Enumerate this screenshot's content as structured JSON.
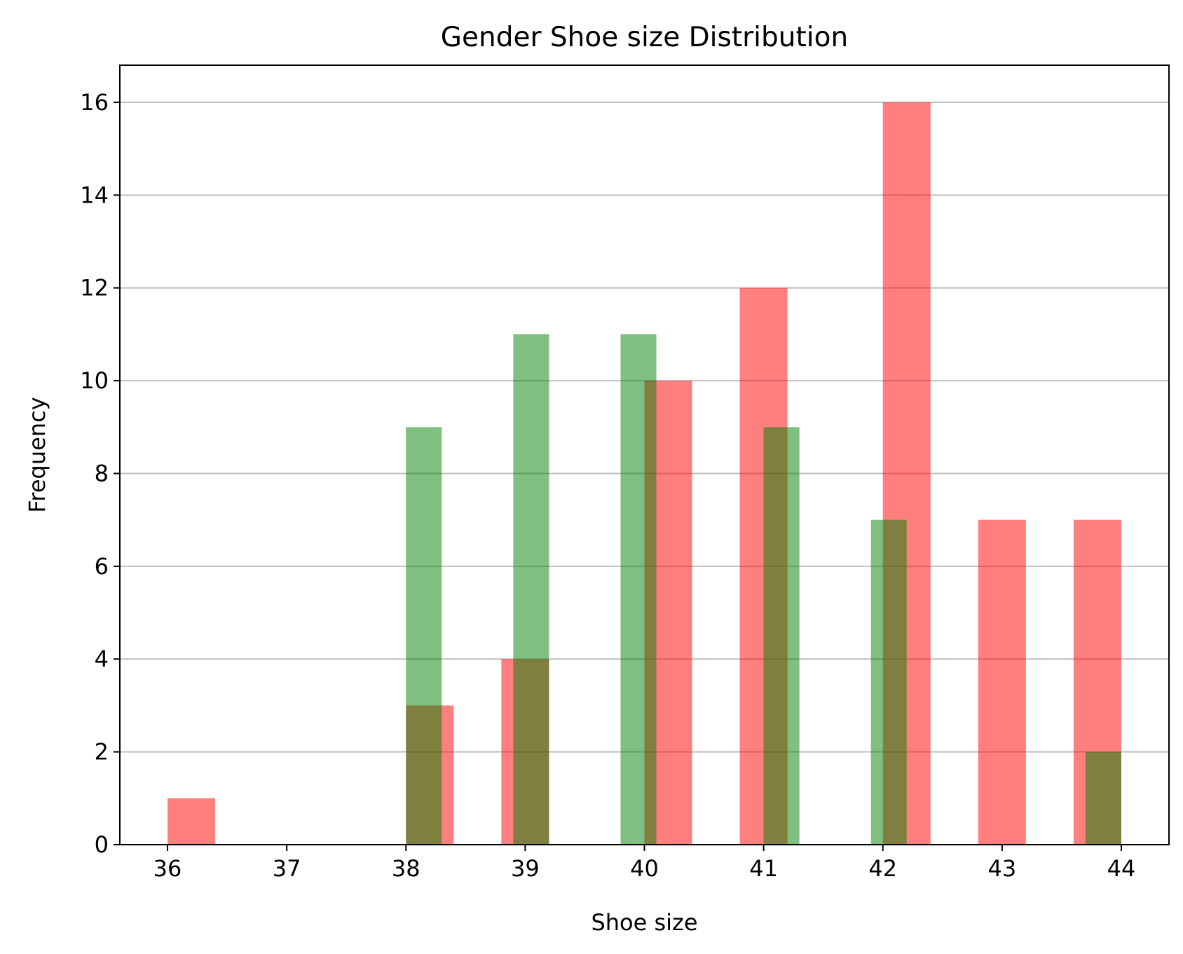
{
  "chart_data": {
    "type": "bar",
    "title": "Gender Shoe size Distribution",
    "xlabel": "Shoe size",
    "ylabel": "Frequency",
    "xlim": [
      35.6,
      44.4
    ],
    "ylim": [
      0,
      16.8
    ],
    "xticks": [
      "36",
      "37",
      "38",
      "39",
      "40",
      "41",
      "42",
      "43",
      "44"
    ],
    "yticks": [
      "0",
      "2",
      "4",
      "6",
      "8",
      "10",
      "12",
      "14",
      "16"
    ],
    "grid": "y",
    "legend": "none",
    "series": [
      {
        "color": "#ff0000",
        "opacity": 0.5,
        "bins": [
          {
            "x0": 36.0,
            "x1": 36.4,
            "value": 1
          },
          {
            "x0": 38.0,
            "x1": 38.4,
            "value": 3
          },
          {
            "x0": 38.8,
            "x1": 39.2,
            "value": 4
          },
          {
            "x0": 40.0,
            "x1": 40.4,
            "value": 10
          },
          {
            "x0": 40.8,
            "x1": 41.2,
            "value": 12
          },
          {
            "x0": 42.0,
            "x1": 42.4,
            "value": 16
          },
          {
            "x0": 42.8,
            "x1": 43.2,
            "value": 7
          },
          {
            "x0": 43.6,
            "x1": 44.0,
            "value": 7
          }
        ]
      },
      {
        "color": "#008000",
        "opacity": 0.5,
        "bins": [
          {
            "x0": 38.0,
            "x1": 38.3,
            "value": 9
          },
          {
            "x0": 38.9,
            "x1": 39.2,
            "value": 11
          },
          {
            "x0": 39.8,
            "x1": 40.1,
            "value": 11
          },
          {
            "x0": 41.0,
            "x1": 41.3,
            "value": 9
          },
          {
            "x0": 41.9,
            "x1": 42.2,
            "value": 7
          },
          {
            "x0": 43.7,
            "x1": 44.0,
            "value": 2
          }
        ]
      }
    ]
  }
}
